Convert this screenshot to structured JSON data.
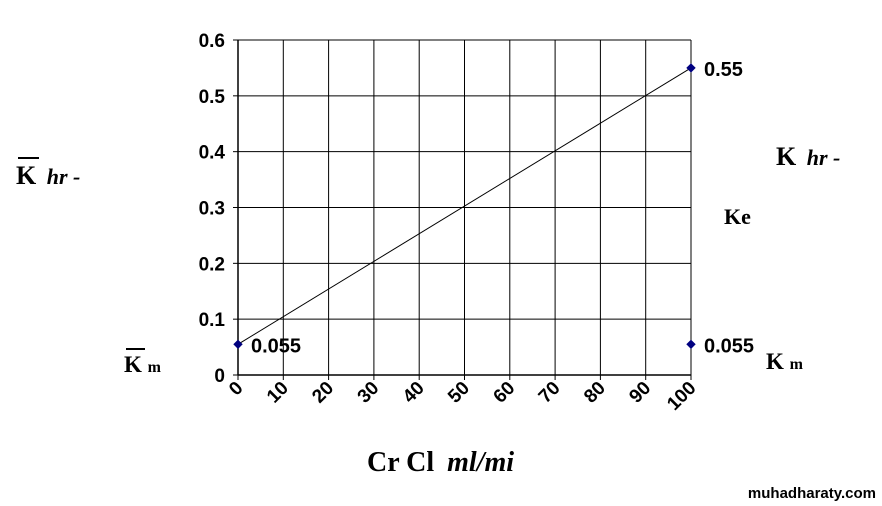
{
  "chart_data": {
    "type": "line",
    "x": [
      0,
      100
    ],
    "series": [
      {
        "values": [
          0.055,
          0.55
        ],
        "color": "#000000"
      }
    ],
    "points": [
      {
        "x": 0,
        "y": 0.055,
        "label": "0.055",
        "color": "#000080"
      },
      {
        "x": 100,
        "y": 0.55,
        "label": "0.55",
        "color": "#000080"
      },
      {
        "x": 100,
        "y": 0.055,
        "label": "0.055",
        "color": "#000080"
      }
    ],
    "xticks": [
      "0",
      "10",
      "20",
      "30",
      "40",
      "50",
      "60",
      "70",
      "80",
      "90",
      "100"
    ],
    "yticks": [
      "0",
      "0.1",
      "0.2",
      "0.3",
      "0.4",
      "0.5",
      "0.6"
    ],
    "xlim": [
      0,
      100
    ],
    "ylim": [
      0,
      0.6
    ],
    "grid": true,
    "xlabel_main": "Cr Cl",
    "xlabel_unit": "ml/mi",
    "left_label_main": "K",
    "left_label_unit": "hr -",
    "left_bottom_label_main": "K",
    "left_bottom_label_sub": "m",
    "right_label_main": "K",
    "right_label_unit": "hr -",
    "right_mid_label": "Ke",
    "right_bottom_label_main": "K",
    "right_bottom_label_sub": "m"
  },
  "watermark": "muhadharaty.com"
}
